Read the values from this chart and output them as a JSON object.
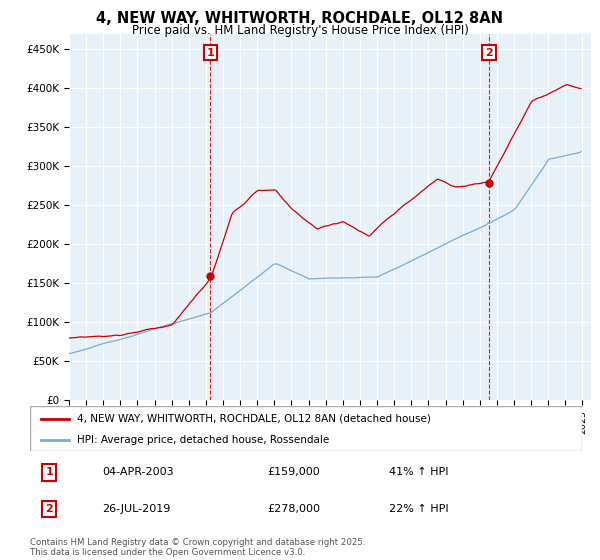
{
  "title_line1": "4, NEW WAY, WHITWORTH, ROCHDALE, OL12 8AN",
  "title_line2": "Price paid vs. HM Land Registry's House Price Index (HPI)",
  "ylim": [
    0,
    470000
  ],
  "yticks": [
    0,
    50000,
    100000,
    150000,
    200000,
    250000,
    300000,
    350000,
    400000,
    450000
  ],
  "ytick_labels": [
    "£0",
    "£50K",
    "£100K",
    "£150K",
    "£200K",
    "£250K",
    "£300K",
    "£350K",
    "£400K",
    "£450K"
  ],
  "hpi_color": "#7aadd4",
  "price_color": "#cc0000",
  "vline_color": "#cc0000",
  "chart_bg": "#e8f0f8",
  "marker1_date": "04-APR-2003",
  "marker1_price": "£159,000",
  "marker1_hpi": "41% ↑ HPI",
  "marker2_date": "26-JUL-2019",
  "marker2_price": "£278,000",
  "marker2_hpi": "22% ↑ HPI",
  "legend_line1": "4, NEW WAY, WHITWORTH, ROCHDALE, OL12 8AN (detached house)",
  "legend_line2": "HPI: Average price, detached house, Rossendale",
  "footer": "Contains HM Land Registry data © Crown copyright and database right 2025.\nThis data is licensed under the Open Government Licence v3.0.",
  "background_color": "#ffffff",
  "grid_color": "#cccccc",
  "sale1_year": 2003.25,
  "sale2_year": 2019.54,
  "sale1_price": 159000,
  "sale2_price": 278000
}
